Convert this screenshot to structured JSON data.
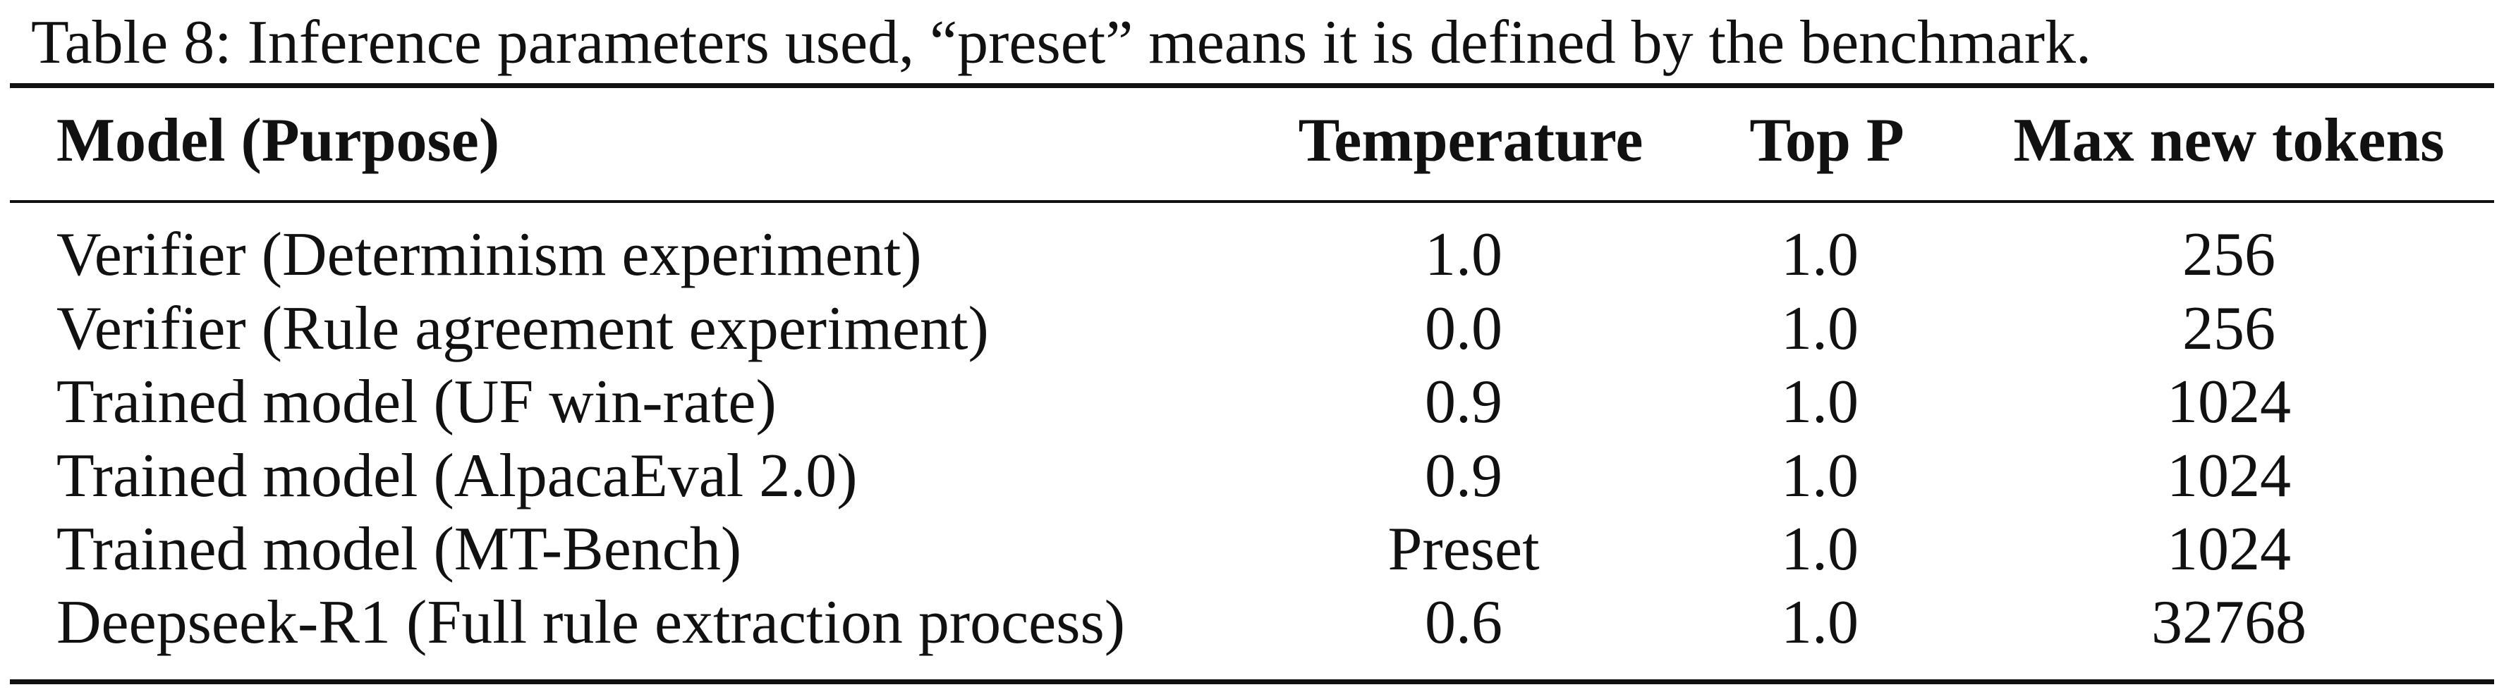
{
  "caption": "Table 8: Inference parameters used, “preset” means it is defined by the benchmark.",
  "table": {
    "headers": [
      "Model (Purpose)",
      "Temperature",
      "Top P",
      "Max new tokens"
    ],
    "rows": [
      [
        "Verifier (Determinism experiment)",
        "1.0",
        "1.0",
        "256"
      ],
      [
        "Verifier (Rule agreement experiment)",
        "0.0",
        "1.0",
        "256"
      ],
      [
        "Trained model (UF win-rate)",
        "0.9",
        "1.0",
        "1024"
      ],
      [
        "Trained model (AlpacaEval 2.0)",
        "0.9",
        "1.0",
        "1024"
      ],
      [
        "Trained model (MT-Bench)",
        "Preset",
        "1.0",
        "1024"
      ],
      [
        "Deepseek-R1 (Full rule extraction process)",
        "0.6",
        "1.0",
        "32768"
      ]
    ]
  }
}
